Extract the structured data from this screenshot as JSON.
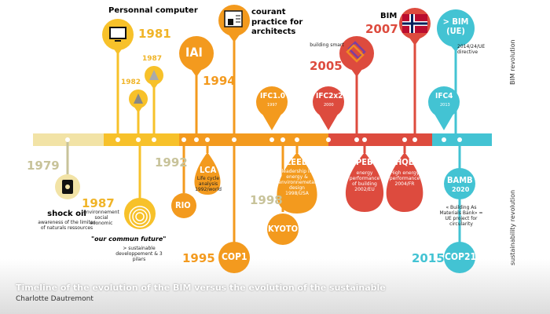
{
  "caption": "Timeline of the evolution of the BIM versus the evolution of the sustainable",
  "author": "Charlotte Dautremont",
  "side_labels": {
    "top": "BIM revolution",
    "bottom": "sustainability revolution"
  },
  "colors": {
    "yellow": "#f7c12a",
    "orange": "#f39a1e",
    "red": "#dd4b3e",
    "cyan": "#43c3d3",
    "pale": "#f2e3a6",
    "black": "#111111"
  },
  "bim": {
    "personal_computer": {
      "label": "Personnal computer",
      "year": "1981",
      "icon": "monitor-icon"
    },
    "y1982": {
      "year": "1982",
      "icon": "cad-software-icon"
    },
    "y1987": {
      "year": "1987",
      "icon": "cad-software-icon"
    },
    "courant": {
      "label": "courant practice for architects",
      "icon": "drafting-tools-icon"
    },
    "iai": {
      "label": "IAI",
      "year": "1994"
    },
    "ifc1": {
      "label": "IFC1.0",
      "year": "1997"
    },
    "ifc2": {
      "label": "IFC2x2",
      "year": "2000"
    },
    "smart": {
      "label": "building smart",
      "year": "2005",
      "icon": "buildingsmart-logo-icon"
    },
    "bim2007": {
      "label": "BIM",
      "year": "2007",
      "icon": "norway-flag-icon"
    },
    "ue": {
      "label": "> BIM (UE)",
      "note": "2014/24/UE directive"
    },
    "ifc4": {
      "label": "IFC4",
      "year": "2013"
    }
  },
  "sustain": {
    "y1979": {
      "year": "1979",
      "label": "shock oil",
      "desc": "awareness of the limites of naturals ressources",
      "icon": "oil-barrel-icon"
    },
    "y1987": {
      "year": "1987",
      "pillars": "environnement social economic",
      "title": "\"our commun future\"",
      "desc": "> sustainable developpement & 3 pilars",
      "icon": "pillars-icon"
    },
    "rio": {
      "label": "RIO",
      "year": "1992"
    },
    "lca": {
      "label": "LCA",
      "desc": "Life cycle analysis 1992/world"
    },
    "cop1": {
      "label": "COP1",
      "year": "1995"
    },
    "kyoto": {
      "label": "KYOTO",
      "year": "1998"
    },
    "leed": {
      "label": "LEED",
      "desc": "leadership in energy & environnemetal design 1998/USA"
    },
    "peb": {
      "label": "PEB",
      "desc": "energy performance of building 2002/EU"
    },
    "hqe": {
      "label": "HQE",
      "desc": "High energy performance 2004/FR"
    },
    "bamb": {
      "label": "BAMB",
      "year": "2020",
      "desc": "« Building As Materials Bank» = UE project for circularity"
    },
    "cop21": {
      "label": "COP21",
      "year": "2015"
    }
  }
}
